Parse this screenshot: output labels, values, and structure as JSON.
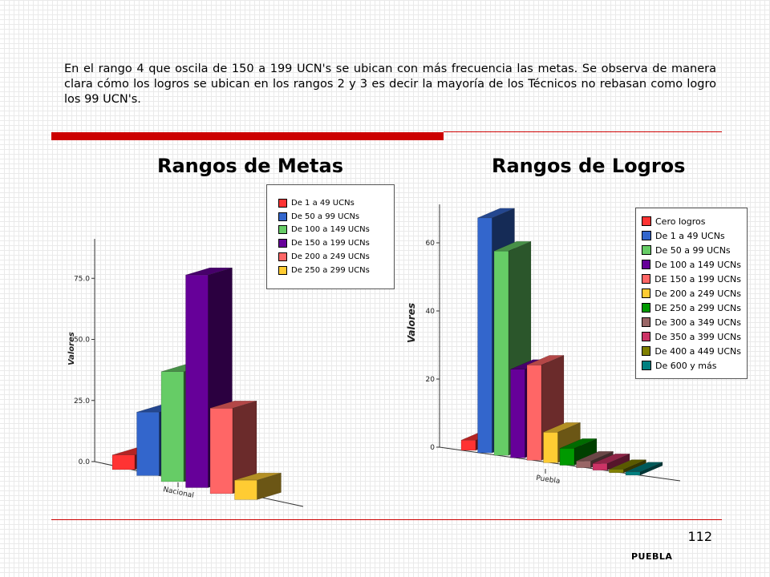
{
  "intro_text": "En el rango 4 que oscila de 150 a 199 UCN's se ubican con más frecuencia las metas. Se observa de manera clara cómo los logros se ubican en los rangos 2 y 3 es decir la mayoría de los Técnicos no rebasan como logro los 99 UCN's.",
  "page_number": "112",
  "footer_label": "PUEBLA",
  "colors": {
    "accent_rule": "#cc0000"
  },
  "chart_data": [
    {
      "type": "bar",
      "title": "Rangos de Metas",
      "ylabel": "Valores",
      "categories": [
        "Nacional"
      ],
      "xtick_label": "Nacional",
      "yticks": [
        "0.0",
        "25.0",
        "50.0",
        "75.0"
      ],
      "ylim": [
        0,
        90
      ],
      "three_d": true,
      "legend_position": "top-right",
      "series": [
        {
          "name": "De 1 a 49 UCNs",
          "values": [
            6
          ],
          "color": "#ff3333"
        },
        {
          "name": "De 50 a 99 UCNs",
          "values": [
            26
          ],
          "color": "#3366cc"
        },
        {
          "name": "De 100 a 149 UCNs",
          "values": [
            45
          ],
          "color": "#66cc66"
        },
        {
          "name": "De 150 a 199 UCNs",
          "values": [
            87
          ],
          "color": "#660099"
        },
        {
          "name": "De 200 a 249 UCNs",
          "values": [
            35
          ],
          "color": "#ff6666"
        },
        {
          "name": "De 250 a 299 UCNs",
          "values": [
            8
          ],
          "color": "#ffcc33"
        }
      ]
    },
    {
      "type": "bar",
      "title": "Rangos de Logros",
      "ylabel": "Valores",
      "categories": [
        "Puebla"
      ],
      "xtick_label": "Puebla",
      "yticks": [
        "0",
        "20",
        "40",
        "60"
      ],
      "ylim": [
        0,
        70
      ],
      "three_d": true,
      "legend_position": "top-right",
      "series": [
        {
          "name": "Cero logros",
          "values": [
            3
          ],
          "color": "#ff3333"
        },
        {
          "name": "De 1 a 49 UCNs",
          "values": [
            69
          ],
          "color": "#3366cc"
        },
        {
          "name": "De 50 a 99 UCNs",
          "values": [
            60
          ],
          "color": "#66cc66"
        },
        {
          "name": "De 100 a 149 UCNs",
          "values": [
            26
          ],
          "color": "#660099"
        },
        {
          "name": "DE 150 a 199 UCNs",
          "values": [
            28
          ],
          "color": "#ff6666"
        },
        {
          "name": "De 200 a 249 UCNs",
          "values": [
            9
          ],
          "color": "#ffcc33"
        },
        {
          "name": "DE 250 a 299 UCNs",
          "values": [
            5
          ],
          "color": "#009900"
        },
        {
          "name": "De 300 a 349 UCNs",
          "values": [
            2
          ],
          "color": "#996666"
        },
        {
          "name": "De 350 a 399 UCNs",
          "values": [
            2
          ],
          "color": "#cc3366"
        },
        {
          "name": "De 400 a 449 UCNs",
          "values": [
            1
          ],
          "color": "#808000"
        },
        {
          "name": "De 600 y más",
          "values": [
            1
          ],
          "color": "#008080"
        }
      ]
    }
  ]
}
